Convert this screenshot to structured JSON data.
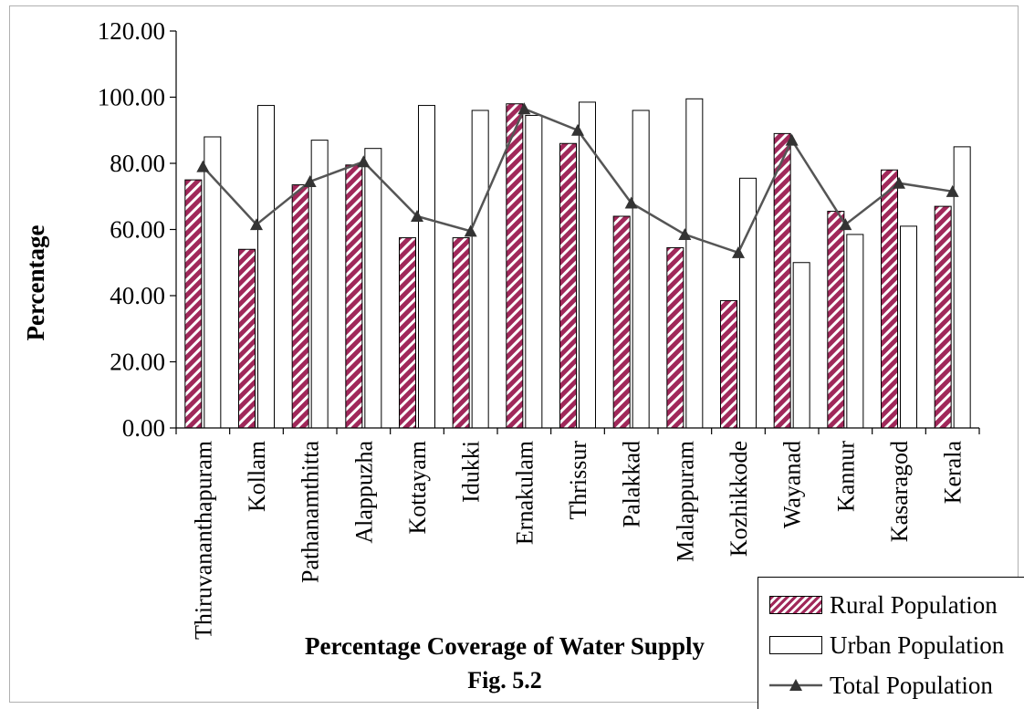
{
  "chart_data": {
    "type": "bar",
    "title": "",
    "xlabel": "Percentage Coverage of Water Supply",
    "caption": "Fig. 5.2",
    "ylabel": "Percentage",
    "ylim": [
      0,
      120
    ],
    "yticks": [
      "0.00",
      "20.00",
      "40.00",
      "60.00",
      "80.00",
      "100.00",
      "120.00"
    ],
    "categories": [
      "Thiruvananthapuram",
      "Kollam",
      "Pathanamthitta",
      "Alappuzha",
      "Kottayam",
      "Idukki",
      "Ernakulam",
      "Thrissur",
      "Palakkad",
      "Malappuram",
      "Kozhikkode",
      "Wayanad",
      "Kannur",
      "Kasaragod",
      "Kerala"
    ],
    "series": [
      {
        "name": "Rural Population",
        "kind": "bar",
        "color": "#a0285a",
        "values": [
          75.0,
          54.0,
          73.5,
          79.5,
          57.5,
          57.5,
          98.0,
          86.0,
          64.0,
          54.5,
          38.5,
          89.0,
          65.5,
          78.0,
          67.0
        ]
      },
      {
        "name": "Urban Population",
        "kind": "bar",
        "color": "#ffffff",
        "values": [
          88.0,
          97.5,
          87.0,
          84.5,
          97.5,
          96.0,
          94.5,
          98.5,
          96.0,
          99.5,
          75.5,
          50.0,
          58.5,
          61.0,
          85.0
        ]
      },
      {
        "name": "Total Population",
        "kind": "line",
        "color": "#555555",
        "values": [
          79.0,
          61.5,
          74.5,
          80.5,
          64.0,
          59.5,
          96.5,
          90.0,
          68.0,
          58.5,
          53.0,
          87.0,
          61.5,
          74.0,
          71.5
        ]
      }
    ],
    "grid": false,
    "legend_position": "bottom-right"
  }
}
